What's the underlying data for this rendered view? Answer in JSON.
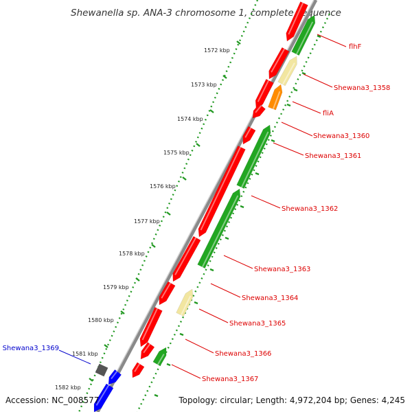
{
  "title": "Shewanella sp. ANA-3 chromosome 1, complete sequence",
  "footer": {
    "accession": "Accession: NC_008577",
    "summary": "Topology: circular; Length: 4,972,204 bp; Genes: 4,245"
  },
  "colors": {
    "red": "#ff0000",
    "green": "#22a622",
    "yellow": "#f2e6a0",
    "orange": "#ff8c00",
    "blue": "#0000ff",
    "gray": "#555555",
    "tick": "#229922",
    "label_red": "#dd0000",
    "label_blue": "#0000cc"
  },
  "scale_labels": [
    "1572 kbp",
    "1573 kbp",
    "1574 kbp",
    "1575 kbp",
    "1576 kbp",
    "1577 kbp",
    "1578 kbp",
    "1579 kbp",
    "1580 kbp",
    "1581 kbp",
    "1582 kbp"
  ],
  "gene_labels": [
    {
      "text": "flhF",
      "color": "red"
    },
    {
      "text": "Shewana3_1358",
      "color": "red"
    },
    {
      "text": "fliA",
      "color": "red"
    },
    {
      "text": "Shewana3_1360",
      "color": "red"
    },
    {
      "text": "Shewana3_1361",
      "color": "red"
    },
    {
      "text": "Shewana3_1362",
      "color": "red"
    },
    {
      "text": "Shewana3_1363",
      "color": "red"
    },
    {
      "text": "Shewana3_1364",
      "color": "red"
    },
    {
      "text": "Shewana3_1365",
      "color": "red"
    },
    {
      "text": "Shewana3_1366",
      "color": "red"
    },
    {
      "text": "Shewana3_1367",
      "color": "red"
    },
    {
      "text": "Shewana3_1369",
      "color": "blue"
    }
  ],
  "features": [
    {
      "track": "inner",
      "color": "red",
      "dir": "fwd"
    },
    {
      "track": "inner",
      "color": "red",
      "dir": "fwd"
    },
    {
      "track": "inner",
      "color": "red",
      "dir": "fwd"
    },
    {
      "track": "inner",
      "color": "red",
      "dir": "fwd"
    },
    {
      "track": "inner",
      "color": "red",
      "dir": "fwd"
    },
    {
      "track": "inner",
      "color": "red",
      "dir": "fwd"
    },
    {
      "track": "inner",
      "color": "red",
      "dir": "fwd"
    },
    {
      "track": "inner",
      "color": "red",
      "dir": "fwd"
    },
    {
      "track": "inner",
      "color": "red",
      "dir": "fwd"
    },
    {
      "track": "inner",
      "color": "red",
      "dir": "fwd"
    },
    {
      "track": "inner",
      "color": "red",
      "dir": "fwd"
    },
    {
      "track": "inner",
      "color": "blue",
      "dir": "fwd"
    },
    {
      "track": "inner",
      "color": "blue",
      "dir": "fwd"
    },
    {
      "track": "outer",
      "color": "green",
      "dir": "rev"
    },
    {
      "track": "outer",
      "color": "yellow",
      "dir": "rev"
    },
    {
      "track": "outer",
      "color": "orange",
      "dir": "rev"
    },
    {
      "track": "outer",
      "color": "green",
      "dir": "rev"
    },
    {
      "track": "outer",
      "color": "green",
      "dir": "rev"
    },
    {
      "track": "outer",
      "color": "yellow",
      "dir": "rev"
    },
    {
      "track": "outer",
      "color": "green",
      "dir": "rev"
    },
    {
      "track": "outer",
      "color": "gray",
      "dir": "none"
    }
  ]
}
